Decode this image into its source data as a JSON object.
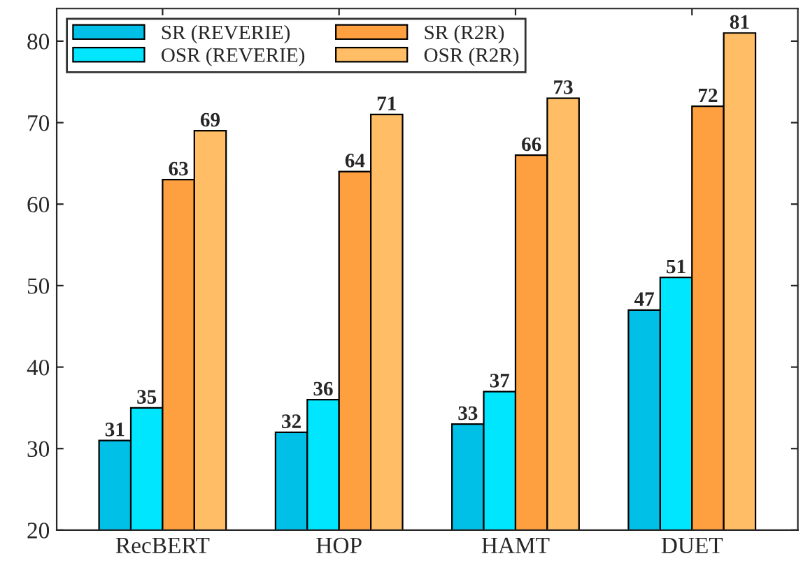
{
  "chart_data": {
    "type": "bar",
    "categories": [
      "RecBERT",
      "HOP",
      "HAMT",
      "DUET"
    ],
    "series": [
      {
        "name": "SR (REVERIE)",
        "color": "#00c0e8",
        "values": [
          31,
          32,
          33,
          47
        ]
      },
      {
        "name": "OSR (REVERIE)",
        "color": "#00e6ff",
        "values": [
          35,
          36,
          37,
          51
        ]
      },
      {
        "name": "SR (R2R)",
        "color": "#ffa040",
        "values": [
          63,
          64,
          66,
          72
        ]
      },
      {
        "name": "OSR (R2R)",
        "color": "#ffbd66",
        "values": [
          69,
          71,
          73,
          81
        ]
      }
    ],
    "ylim": [
      20,
      84
    ],
    "yticks": [
      20,
      30,
      40,
      50,
      60,
      70,
      80
    ],
    "data_labels": true,
    "grid": false,
    "legend": "top left"
  }
}
